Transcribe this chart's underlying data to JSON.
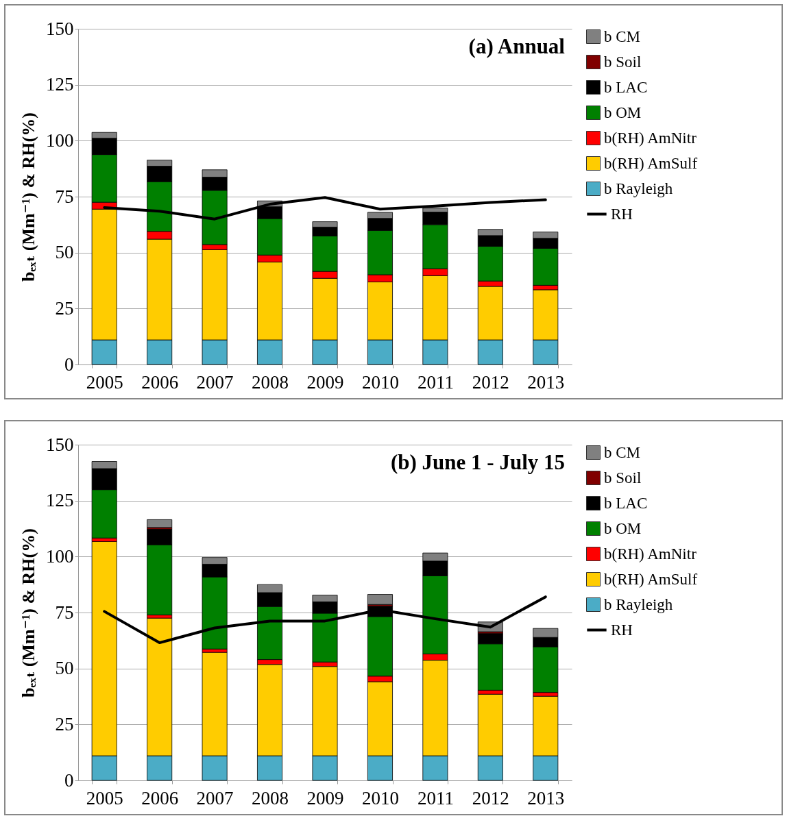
{
  "chart_data": [
    {
      "type": "bar",
      "stacked": true,
      "annotations": [
        "(a) Annual"
      ],
      "ylabel": "bₑₓₜ (Mm⁻¹) & RH(%)",
      "categories": [
        "2005",
        "2006",
        "2007",
        "2008",
        "2009",
        "2010",
        "2011",
        "2012",
        "2013"
      ],
      "ylim": [
        0,
        150
      ],
      "yticks": [
        0,
        25,
        50,
        75,
        100,
        125,
        150
      ],
      "grid": "y",
      "legend": "right",
      "series": [
        {
          "name": "b Rayleigh",
          "color": "#4bacc6",
          "values": [
            11,
            11,
            11,
            11,
            11,
            11,
            11,
            11,
            11
          ]
        },
        {
          "name": "b(RH) AmSulf",
          "color": "#ffcc00",
          "values": [
            58.4,
            45.0,
            40.3,
            34.8,
            27.5,
            25.9,
            28.7,
            23.9,
            22.4
          ]
        },
        {
          "name": "b(RH) AmNitr",
          "color": "#ff0000",
          "values": [
            3.1,
            3.5,
            2.3,
            3.1,
            3.1,
            3.2,
            3.1,
            2.4,
            2.0
          ]
        },
        {
          "name": "b OM",
          "color": "#008000",
          "values": [
            21.3,
            22.2,
            24.2,
            16.3,
            15.8,
            19.8,
            19.7,
            15.5,
            16.5
          ]
        },
        {
          "name": "b LAC",
          "color": "#000000",
          "values": [
            7.3,
            6.9,
            5.9,
            5.3,
            4.0,
            5.4,
            5.6,
            4.8,
            4.5
          ]
        },
        {
          "name": "b Soil",
          "color": "#800000",
          "values": [
            null,
            null,
            null,
            null,
            null,
            null,
            null,
            null,
            null
          ]
        },
        {
          "name": "b CM",
          "color": "#808080",
          "values": [
            2.6,
            2.7,
            3.3,
            2.6,
            2.4,
            2.7,
            1.8,
            2.8,
            2.8
          ]
        },
        {
          "name": "RH",
          "type": "line",
          "color": "#000000",
          "values": [
            70.1,
            68.5,
            65.0,
            71.6,
            74.6,
            69.4,
            70.8,
            72.4,
            73.6
          ]
        }
      ]
    },
    {
      "type": "bar",
      "stacked": true,
      "annotations": [
        "(b) June 1 - July 15"
      ],
      "ylabel": "bₑₓₜ (Mm⁻¹) & RH(%)",
      "categories": [
        "2005",
        "2006",
        "2007",
        "2008",
        "2009",
        "2010",
        "2011",
        "2012",
        "2013"
      ],
      "ylim": [
        0,
        150
      ],
      "yticks": [
        0,
        25,
        50,
        75,
        100,
        125,
        150
      ],
      "grid": "y",
      "legend": "right",
      "series": [
        {
          "name": "b Rayleigh",
          "color": "#4bacc6",
          "values": [
            11,
            11,
            11,
            11,
            11,
            11,
            11,
            11,
            11
          ]
        },
        {
          "name": "b(RH) AmSulf",
          "color": "#ffcc00",
          "values": [
            95.7,
            61.5,
            46.2,
            40.8,
            39.9,
            33.1,
            42.7,
            27.5,
            26.6
          ]
        },
        {
          "name": "b(RH) AmNitr",
          "color": "#ff0000",
          "values": [
            1.6,
            1.4,
            1.5,
            2.2,
            2.0,
            2.5,
            2.8,
            1.8,
            1.7
          ]
        },
        {
          "name": "b OM",
          "color": "#008000",
          "values": [
            21.6,
            31.4,
            32.2,
            23.7,
            21.8,
            26.6,
            34.9,
            20.7,
            20.4
          ]
        },
        {
          "name": "b LAC",
          "color": "#000000",
          "values": [
            9.4,
            6.9,
            5.7,
            6.2,
            5.1,
            4.6,
            6.6,
            4.6,
            4.2
          ]
        },
        {
          "name": "b Soil",
          "color": "#800000",
          "values": [
            null,
            0.8,
            null,
            null,
            null,
            0.8,
            null,
            0.8,
            null
          ]
        },
        {
          "name": "b CM",
          "color": "#808080",
          "values": [
            3.2,
            3.5,
            3.0,
            3.6,
            3.0,
            4.5,
            3.6,
            4.4,
            4.0
          ]
        },
        {
          "name": "RH",
          "type": "line",
          "color": "#000000",
          "values": [
            75.5,
            61.5,
            68.1,
            71.2,
            71.2,
            76.2,
            72.2,
            68.5,
            82.0
          ]
        }
      ]
    }
  ]
}
